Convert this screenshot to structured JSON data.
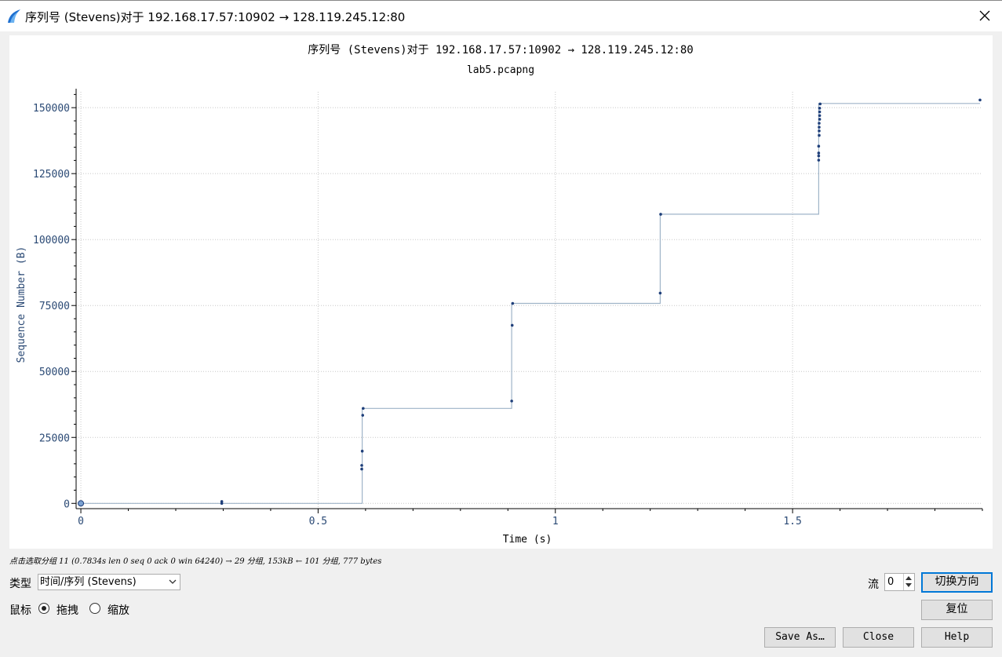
{
  "window": {
    "title": "序列号 (Stevens)对于 192.168.17.57:10902 → 128.119.245.12:80",
    "app_icon": "wireshark-fin-icon",
    "close_icon": "close-icon"
  },
  "chart_data": {
    "type": "scatter",
    "title": "序列号 (Stevens)对于 192.168.17.57:10902 → 128.119.245.12:80",
    "subtitle": "lab5.pcapng",
    "xlabel": "Time (s)",
    "ylabel": "Sequence Number (B)",
    "xlim": [
      -0.01,
      1.9
    ],
    "ylim": [
      -2000,
      156000
    ],
    "x_ticks": [
      0,
      0.5,
      1,
      1.5
    ],
    "x_tick_labels": [
      "0",
      "0.5",
      "1",
      "1.5"
    ],
    "y_ticks": [
      0,
      25000,
      50000,
      75000,
      100000,
      125000,
      150000
    ],
    "y_tick_labels": [
      "0",
      "25000",
      "50000",
      "75000",
      "100000",
      "125000",
      "150000"
    ],
    "grid": true,
    "step_line": true,
    "colors": {
      "points": "#1f3f7a",
      "line": "#9fb4c8",
      "axis_text": "#2b4a75"
    },
    "points": [
      {
        "x": 0.0,
        "y": 0
      },
      {
        "x": 0.297,
        "y": 0
      },
      {
        "x": 0.297,
        "y": 700
      },
      {
        "x": 0.592,
        "y": 13000
      },
      {
        "x": 0.592,
        "y": 14400
      },
      {
        "x": 0.593,
        "y": 19800
      },
      {
        "x": 0.594,
        "y": 33400
      },
      {
        "x": 0.595,
        "y": 36000
      },
      {
        "x": 0.908,
        "y": 38800
      },
      {
        "x": 0.909,
        "y": 67500
      },
      {
        "x": 0.91,
        "y": 75800
      },
      {
        "x": 1.221,
        "y": 79700
      },
      {
        "x": 1.222,
        "y": 109600
      },
      {
        "x": 1.555,
        "y": 130100
      },
      {
        "x": 1.555,
        "y": 131700
      },
      {
        "x": 1.555,
        "y": 132800
      },
      {
        "x": 1.555,
        "y": 135400
      },
      {
        "x": 1.556,
        "y": 139500
      },
      {
        "x": 1.556,
        "y": 141200
      },
      {
        "x": 1.556,
        "y": 142600
      },
      {
        "x": 1.556,
        "y": 144100
      },
      {
        "x": 1.557,
        "y": 145600
      },
      {
        "x": 1.557,
        "y": 147000
      },
      {
        "x": 1.557,
        "y": 148400
      },
      {
        "x": 1.557,
        "y": 149800
      },
      {
        "x": 1.558,
        "y": 151400
      },
      {
        "x": 1.895,
        "y": 152900
      }
    ],
    "step_path": [
      [
        0.0,
        0
      ],
      [
        0.593,
        0
      ],
      [
        0.593,
        36000
      ],
      [
        0.908,
        36000
      ],
      [
        0.908,
        75800
      ],
      [
        1.221,
        75800
      ],
      [
        1.221,
        109600
      ],
      [
        1.555,
        109600
      ],
      [
        1.555,
        151600
      ],
      [
        1.895,
        151600
      ]
    ],
    "selected_point": {
      "x": 0.0,
      "y": 0
    }
  },
  "status": {
    "text": "点击选取分组 11 (0.7834s len 0 seq 0 ack 0 win 64240) → 29 分组, 153kB ← 101 分组, 777 bytes"
  },
  "controls": {
    "type_label": "类型",
    "type_value": "时间/序列 (Stevens)",
    "mouse_label": "鼠标",
    "drag_label": "拖拽",
    "zoom_label": "缩放",
    "mouse_mode": "drag",
    "stream_label": "流",
    "stream_value": "0",
    "switch_direction": "切换方向",
    "reset": "复位",
    "save_as": "Save As…",
    "close": "Close",
    "help": "Help"
  }
}
